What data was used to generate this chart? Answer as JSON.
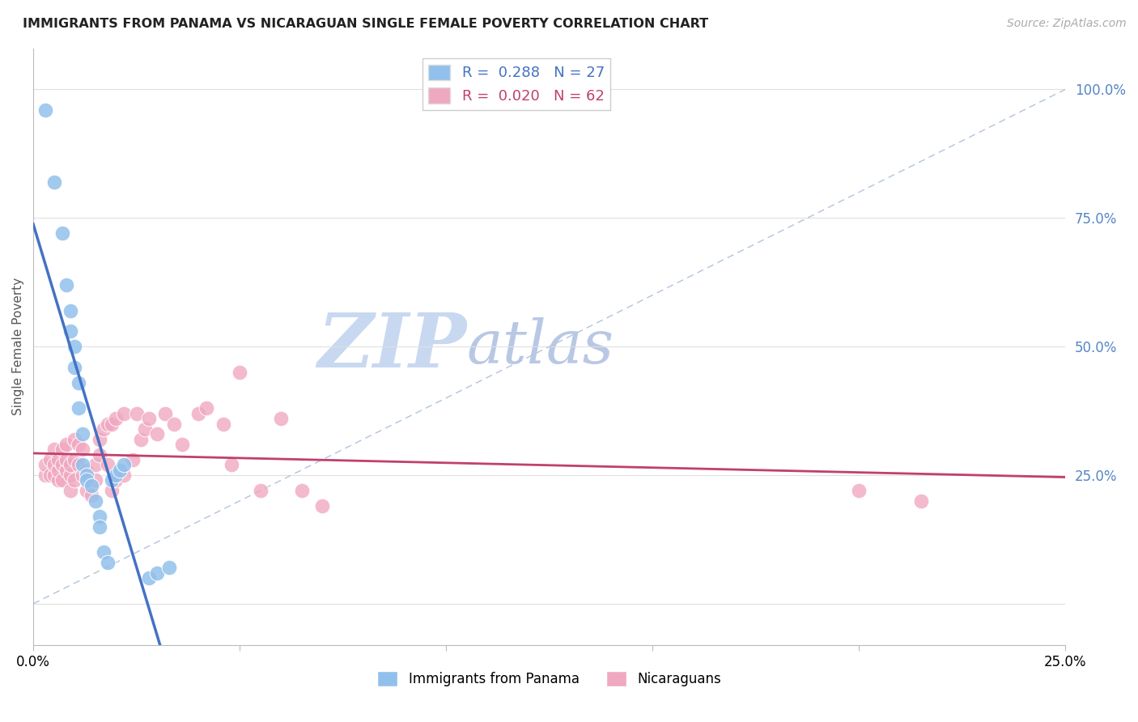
{
  "title": "IMMIGRANTS FROM PANAMA VS NICARAGUAN SINGLE FEMALE POVERTY CORRELATION CHART",
  "source": "Source: ZipAtlas.com",
  "ylabel": "Single Female Poverty",
  "xlim": [
    0.0,
    0.25
  ],
  "ylim": [
    -0.08,
    1.08
  ],
  "y_ticks": [
    0.0,
    0.25,
    0.5,
    0.75,
    1.0
  ],
  "y_tick_labels": [
    "",
    "25.0%",
    "50.0%",
    "75.0%",
    "100.0%"
  ],
  "legend_label1": "Immigrants from Panama",
  "legend_label2": "Nicaraguans",
  "watermark_zip": "ZIP",
  "watermark_atlas": "atlas",
  "watermark_color_zip": "#C8D8F0",
  "watermark_color_atlas": "#C0C8E8",
  "background_color": "#FFFFFF",
  "grid_color": "#E0E0E0",
  "blue_color": "#92C0EC",
  "pink_color": "#F0A8C0",
  "blue_line_color": "#4472C4",
  "pink_line_color": "#C0406C",
  "diag_line_color": "#B0C4DC",
  "panama_x": [
    0.003,
    0.005,
    0.007,
    0.008,
    0.009,
    0.009,
    0.01,
    0.01,
    0.011,
    0.011,
    0.012,
    0.012,
    0.013,
    0.013,
    0.014,
    0.015,
    0.016,
    0.016,
    0.017,
    0.018,
    0.019,
    0.02,
    0.021,
    0.022,
    0.028,
    0.03,
    0.033
  ],
  "panama_y": [
    0.96,
    0.82,
    0.72,
    0.62,
    0.57,
    0.53,
    0.5,
    0.46,
    0.43,
    0.38,
    0.33,
    0.27,
    0.25,
    0.24,
    0.23,
    0.2,
    0.17,
    0.15,
    0.1,
    0.08,
    0.24,
    0.25,
    0.26,
    0.27,
    0.05,
    0.06,
    0.07
  ],
  "nicaragua_x": [
    0.003,
    0.003,
    0.004,
    0.004,
    0.005,
    0.005,
    0.005,
    0.006,
    0.006,
    0.006,
    0.007,
    0.007,
    0.007,
    0.008,
    0.008,
    0.008,
    0.009,
    0.009,
    0.009,
    0.01,
    0.01,
    0.01,
    0.011,
    0.011,
    0.012,
    0.012,
    0.013,
    0.013,
    0.014,
    0.015,
    0.015,
    0.016,
    0.016,
    0.017,
    0.018,
    0.018,
    0.019,
    0.019,
    0.02,
    0.02,
    0.022,
    0.022,
    0.024,
    0.025,
    0.026,
    0.027,
    0.028,
    0.03,
    0.032,
    0.034,
    0.036,
    0.04,
    0.042,
    0.046,
    0.048,
    0.05,
    0.055,
    0.06,
    0.065,
    0.07,
    0.2,
    0.215
  ],
  "nicaragua_y": [
    0.25,
    0.27,
    0.25,
    0.28,
    0.25,
    0.27,
    0.3,
    0.24,
    0.26,
    0.28,
    0.24,
    0.27,
    0.3,
    0.26,
    0.28,
    0.31,
    0.25,
    0.27,
    0.22,
    0.24,
    0.28,
    0.32,
    0.27,
    0.31,
    0.25,
    0.3,
    0.26,
    0.22,
    0.21,
    0.24,
    0.27,
    0.29,
    0.32,
    0.34,
    0.35,
    0.27,
    0.35,
    0.22,
    0.36,
    0.24,
    0.37,
    0.25,
    0.28,
    0.37,
    0.32,
    0.34,
    0.36,
    0.33,
    0.37,
    0.35,
    0.31,
    0.37,
    0.38,
    0.35,
    0.27,
    0.45,
    0.22,
    0.36,
    0.22,
    0.19,
    0.22,
    0.2
  ]
}
